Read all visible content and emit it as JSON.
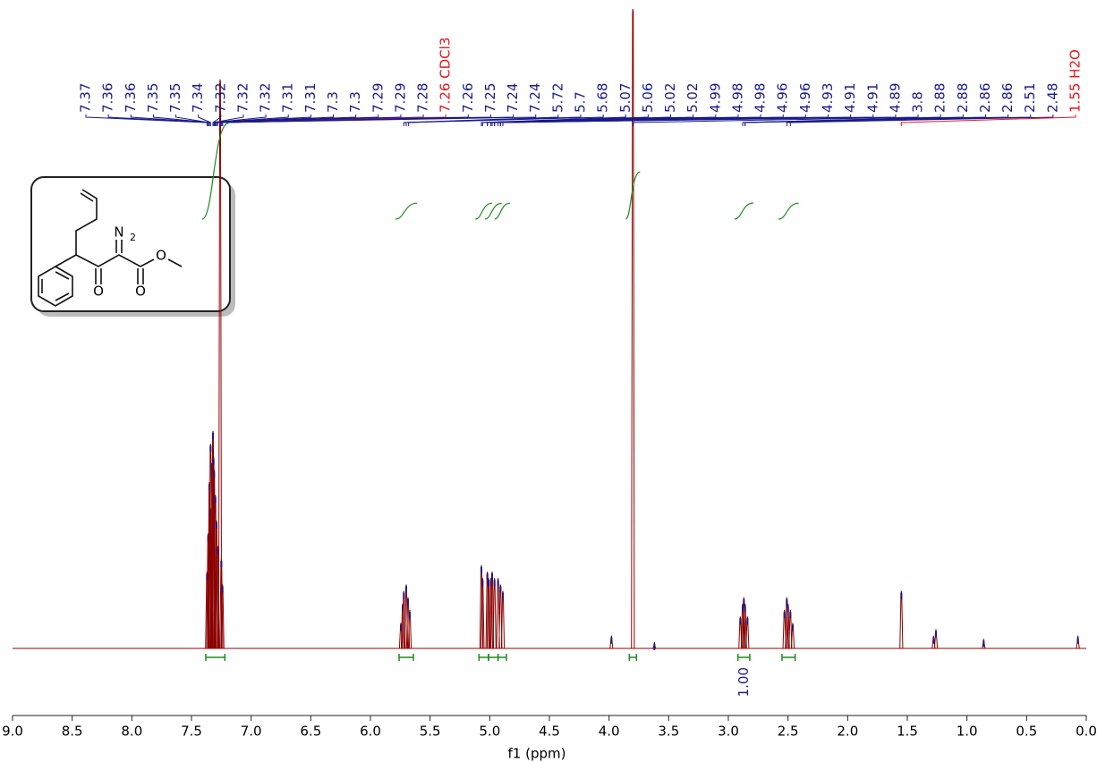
{
  "chart_data": {
    "type": "nmr",
    "xlabel": "f1 (ppm)",
    "xlim": [
      9,
      0
    ],
    "ylim": [
      0,
      100
    ],
    "xticks": [
      {
        "value": 9,
        "label": "9.0"
      },
      8.5,
      {
        "value": 8,
        "label": "8.0"
      },
      7.5,
      {
        "value": 7,
        "label": "7.0"
      },
      6.5,
      {
        "value": 6,
        "label": "6.0"
      },
      5.5,
      {
        "value": 5,
        "label": "5.0"
      },
      4.5,
      {
        "value": 4,
        "label": "4.0"
      },
      3.5,
      {
        "value": 3,
        "label": "3.0"
      },
      2.5,
      {
        "value": 2,
        "label": "2.0"
      },
      1.5,
      {
        "value": 1,
        "label": "1.0"
      },
      0.5,
      {
        "value": 0,
        "label": "0.0"
      }
    ],
    "color": "#8b0000",
    "label_color": "#1a1a8c",
    "solvent_label_color": "#e8141c",
    "integral_color": "#1e8c1e",
    "peak_labels": [
      7.37,
      7.36,
      7.36,
      7.35,
      7.35,
      7.34,
      7.32,
      7.32,
      7.32,
      7.31,
      7.31,
      7.3,
      7.3,
      7.29,
      7.29,
      7.28,
      {
        "value": 7.26,
        "label": "7.26 CDCl3"
      },
      7.26,
      7.25,
      7.24,
      7.24,
      5.72,
      5.7,
      5.68,
      5.07,
      5.06,
      5.02,
      5.02,
      4.99,
      4.98,
      4.98,
      4.96,
      4.96,
      4.93,
      4.91,
      4.91,
      4.89,
      3.8,
      2.88,
      2.88,
      2.86,
      2.86,
      2.51,
      2.48,
      {
        "value": 1.55,
        "label": "1.55 H2O"
      }
    ],
    "peaks": {
      "x": [
        7.37,
        7.36,
        7.35,
        7.345,
        7.34,
        7.33,
        7.32,
        7.315,
        7.31,
        7.3,
        7.29,
        7.28,
        7.26,
        7.25,
        7.24,
        5.745,
        5.73,
        5.72,
        5.7,
        5.685,
        5.67,
        5.07,
        5.06,
        5.02,
        5.01,
        4.99,
        4.98,
        4.96,
        4.93,
        4.91,
        4.89,
        3.98,
        3.8,
        3.62,
        2.9,
        2.88,
        2.87,
        2.86,
        2.84,
        2.53,
        2.51,
        2.5,
        2.48,
        2.46,
        1.55,
        1.28,
        1.26,
        0.86,
        0.07
      ],
      "values": [
        12,
        18,
        26,
        22,
        32,
        29,
        34,
        30,
        28,
        24,
        20,
        16,
        89,
        14,
        10,
        4,
        7,
        9,
        10,
        8,
        6,
        13,
        11,
        12,
        11,
        11,
        12,
        11,
        11,
        10,
        9,
        2,
        100,
        1,
        5,
        7,
        8,
        7,
        5,
        6,
        8,
        7,
        6,
        4,
        9,
        2,
        3,
        1.5,
        2
      ]
    },
    "integrals": [
      {
        "value": 5.96,
        "from": 7.38,
        "to": 7.22
      },
      {
        "value": 0.99,
        "from": 5.76,
        "to": 5.64
      },
      {
        "value": 0.99,
        "from": 5.09,
        "to": 5.01
      },
      {
        "value": 0.98,
        "from": 5.01,
        "to": 4.93
      },
      {
        "value": 0.99,
        "from": 4.93,
        "to": 4.86
      },
      {
        "value": 2.93,
        "from": 3.83,
        "to": 3.77
      },
      {
        "value": 1,
        "label": "1.00",
        "from": 2.92,
        "to": 2.82
      },
      {
        "value": 0.99,
        "from": 2.55,
        "to": 2.44
      }
    ],
    "annotations": [
      "N",
      "2",
      "O",
      "O",
      "O"
    ]
  }
}
